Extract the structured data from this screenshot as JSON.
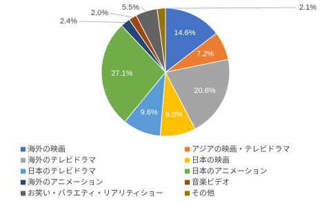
{
  "chart_data": {
    "type": "pie",
    "categories": [
      "海外の映画",
      "アジアの映画・テレビドラマ",
      "海外のテレビドラマ",
      "日本の映画",
      "日本のテレビドラマ",
      "日本のアニメーション",
      "海外のアニメーション",
      "音楽ビデオ",
      "お笑い・バラエティ・リアリティショー",
      "その他"
    ],
    "values": [
      14.6,
      7.2,
      20.6,
      9.0,
      9.6,
      27.1,
      2.4,
      2.0,
      5.5,
      2.1
    ],
    "value_labels": [
      "14.6%",
      "7.2%",
      "20.6%",
      "9.0%",
      "9.6%",
      "27.1%",
      "2.4%",
      "2.0%",
      "5.5%",
      "2.1%"
    ],
    "colors": [
      "#4472c4",
      "#ed7d31",
      "#a5a5a5",
      "#ffc000",
      "#5b9bd5",
      "#70ad47",
      "#264478",
      "#9e480e",
      "#636363",
      "#997300"
    ]
  }
}
